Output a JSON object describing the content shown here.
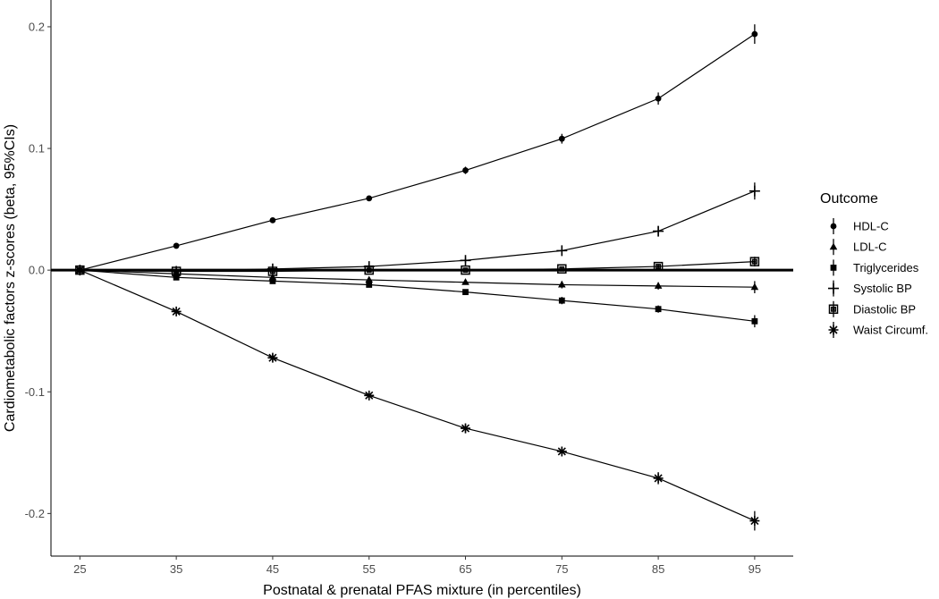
{
  "chart_data": {
    "type": "line",
    "title": "",
    "xlabel": "Postnatal & prenatal PFAS mixture (in percentiles)",
    "ylabel": "Cardiometabolic factors z-scores (beta, 95%CIs)",
    "x": [
      25,
      35,
      45,
      55,
      65,
      75,
      85,
      95
    ],
    "xticks": [
      "25",
      "35",
      "45",
      "55",
      "65",
      "75",
      "85",
      "95"
    ],
    "yticks": [
      -0.2,
      -0.1,
      0.0,
      0.1,
      0.2
    ],
    "yticklabels": [
      "-0.2",
      "-0.1",
      "0.0",
      "0.1",
      "0.2"
    ],
    "xlim": [
      22,
      99
    ],
    "ylim": [
      -0.235,
      0.222
    ],
    "reference_line": 0,
    "grid": false,
    "legend": {
      "title": "Outcome",
      "position": "right"
    },
    "series": [
      {
        "name": "HDL-C",
        "marker": "circle",
        "values": [
          0,
          0.02,
          0.041,
          0.059,
          0.082,
          0.108,
          0.141,
          0.194
        ],
        "ci": [
          0,
          0.002,
          0.002,
          0.002,
          0.003,
          0.004,
          0.005,
          0.008
        ]
      },
      {
        "name": "LDL-C",
        "marker": "triangle",
        "values": [
          0,
          -0.003,
          -0.006,
          -0.008,
          -0.01,
          -0.012,
          -0.013,
          -0.014
        ],
        "ci": [
          0,
          0.001,
          0.001,
          0.002,
          0.002,
          0.003,
          0.003,
          0.005
        ]
      },
      {
        "name": "Triglycerides",
        "marker": "square",
        "values": [
          0,
          -0.006,
          -0.009,
          -0.012,
          -0.018,
          -0.025,
          -0.032,
          -0.042
        ],
        "ci": [
          0,
          0.001,
          0.001,
          0.002,
          0.002,
          0.003,
          0.003,
          0.005
        ]
      },
      {
        "name": "Systolic BP",
        "marker": "plus",
        "values": [
          0,
          -0.001,
          0.001,
          0.003,
          0.008,
          0.016,
          0.032,
          0.065
        ],
        "ci": [
          0,
          0.001,
          0.001,
          0.002,
          0.002,
          0.003,
          0.004,
          0.007
        ]
      },
      {
        "name": "Diastolic BP",
        "marker": "boxed-square",
        "values": [
          0,
          -0.001,
          -0.001,
          0.0,
          0.0,
          0.001,
          0.003,
          0.007
        ],
        "ci": [
          0,
          0.001,
          0.001,
          0.001,
          0.001,
          0.002,
          0.002,
          0.004
        ]
      },
      {
        "name": "Waist Circumf.",
        "marker": "asterisk",
        "values": [
          0,
          -0.034,
          -0.072,
          -0.103,
          -0.13,
          -0.149,
          -0.171,
          -0.206
        ],
        "ci": [
          0,
          0.002,
          0.003,
          0.003,
          0.004,
          0.004,
          0.005,
          0.008
        ]
      }
    ]
  }
}
